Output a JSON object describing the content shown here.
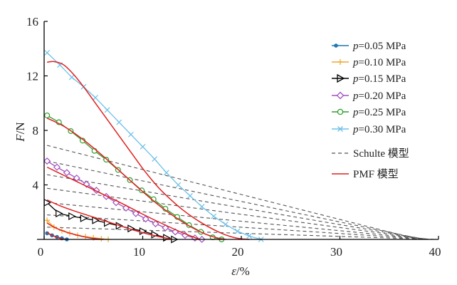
{
  "chart_data": {
    "type": "line",
    "title": "",
    "xlabel": {
      "symbol": "ε",
      "unit": "/%"
    },
    "ylabel": {
      "symbol": "F",
      "unit": "/N"
    },
    "xlim": [
      0,
      40
    ],
    "ylim": [
      0,
      16
    ],
    "xticks": [
      "0",
      "10",
      "20",
      "30",
      "40"
    ],
    "yticks": [
      "4",
      "8",
      "12",
      "16"
    ],
    "grid": false,
    "legend_position": "top-right",
    "series": [
      {
        "name": "p=0.05 MPa",
        "prefix": "p",
        "suffix": "=0.05 MPa",
        "color": "#1f77b4",
        "marker": "dot",
        "x": [
          0.3,
          0.8,
          1.3,
          1.8,
          2.3
        ],
        "y": [
          0.45,
          0.3,
          0.18,
          0.08,
          0.0
        ]
      },
      {
        "name": "p=0.10 MPa",
        "prefix": "p",
        "suffix": "=0.10 MPa",
        "color": "#f0a830",
        "marker": "plus",
        "x": [
          0.3,
          1.0,
          1.8,
          2.6,
          3.4,
          4.2,
          5.0,
          5.8,
          6.5
        ],
        "y": [
          1.4,
          0.9,
          0.65,
          0.45,
          0.3,
          0.2,
          0.12,
          0.05,
          0.0
        ]
      },
      {
        "name": "p=0.15 MPa",
        "prefix": "p",
        "suffix": "=0.15 MPa",
        "color": "#000000",
        "marker": "triangle-right",
        "x": [
          0.3,
          1.5,
          2.8,
          4.0,
          5.2,
          6.4,
          7.6,
          8.8,
          10.0,
          11.2,
          12.4,
          13.2
        ],
        "y": [
          2.7,
          1.9,
          1.7,
          1.55,
          1.4,
          1.2,
          1.0,
          0.8,
          0.6,
          0.35,
          0.12,
          0.0
        ]
      },
      {
        "name": "p=0.20 MPa",
        "prefix": "p",
        "suffix": "=0.20 MPa",
        "color": "#a050c0",
        "marker": "diamond",
        "x": [
          0.3,
          1.3,
          2.3,
          3.3,
          4.3,
          5.3,
          6.3,
          7.3,
          8.3,
          9.3,
          10.3,
          11.3,
          12.3,
          13.3,
          14.3,
          15.3,
          16.0
        ],
        "y": [
          5.75,
          5.3,
          4.9,
          4.5,
          4.05,
          3.6,
          3.15,
          2.7,
          2.3,
          1.9,
          1.5,
          1.15,
          0.85,
          0.55,
          0.3,
          0.1,
          0.0
        ]
      },
      {
        "name": "p=0.25 MPa",
        "prefix": "p",
        "suffix": "=0.25 MPa",
        "color": "#2ca02c",
        "marker": "circle",
        "x": [
          0.3,
          1.5,
          2.7,
          3.9,
          5.1,
          6.3,
          7.5,
          8.7,
          9.9,
          11.1,
          12.3,
          13.5,
          14.7,
          15.9,
          17.1,
          18.0
        ],
        "y": [
          9.1,
          8.6,
          7.95,
          7.25,
          6.5,
          5.85,
          5.1,
          4.35,
          3.6,
          2.95,
          2.25,
          1.65,
          1.05,
          0.55,
          0.15,
          0.0
        ]
      },
      {
        "name": "p=0.30 MPa",
        "prefix": "p",
        "suffix": "=0.30 MPa",
        "color": "#6ec0e8",
        "marker": "x",
        "x": [
          0.3,
          1.6,
          2.8,
          4.0,
          5.2,
          6.4,
          7.6,
          8.8,
          10.0,
          11.2,
          12.4,
          13.6,
          14.8,
          16.0,
          17.2,
          18.4,
          19.6,
          20.8,
          22.0
        ],
        "y": [
          13.7,
          12.8,
          11.9,
          11.2,
          10.4,
          9.5,
          8.6,
          7.7,
          6.8,
          5.9,
          4.9,
          4.0,
          3.2,
          2.4,
          1.7,
          1.1,
          0.6,
          0.25,
          0.0
        ]
      }
    ],
    "schulte_model": {
      "name": "Schulte 模型",
      "color": "#555555",
      "lines": [
        {
          "x": [
            0.3,
            38.0
          ],
          "y": [
            6.9,
            0.0
          ]
        },
        {
          "x": [
            0.3,
            38.5
          ],
          "y": [
            5.75,
            0.0
          ]
        },
        {
          "x": [
            0.3,
            38.8
          ],
          "y": [
            4.75,
            0.0
          ]
        },
        {
          "x": [
            0.3,
            39.0
          ],
          "y": [
            3.75,
            0.0
          ]
        },
        {
          "x": [
            0.3,
            39.2
          ],
          "y": [
            2.7,
            0.0
          ]
        },
        {
          "x": [
            0.3,
            39.4
          ],
          "y": [
            1.8,
            0.0
          ]
        },
        {
          "x": [
            0.3,
            39.6
          ],
          "y": [
            0.9,
            0.0
          ]
        }
      ]
    },
    "pmf_model": {
      "name": "PMF 模型",
      "color": "#e02020",
      "curves": [
        {
          "x": [
            0.3,
            0.8,
            1.3,
            1.8,
            2.2
          ],
          "y": [
            0.5,
            0.3,
            0.15,
            0.05,
            0.0
          ]
        },
        {
          "x": [
            0.3,
            1.0,
            2.0,
            3.0,
            4.0,
            5.0,
            6.0
          ],
          "y": [
            1.2,
            0.9,
            0.6,
            0.38,
            0.2,
            0.07,
            0.0
          ]
        },
        {
          "x": [
            0.3,
            1.5,
            3.0,
            4.5,
            6.0,
            7.5,
            9.0,
            10.5,
            12.0,
            13.0
          ],
          "y": [
            2.9,
            2.5,
            2.1,
            1.75,
            1.4,
            1.05,
            0.7,
            0.4,
            0.15,
            0.0
          ]
        },
        {
          "x": [
            0.3,
            2.0,
            4.0,
            6.0,
            8.0,
            10.0,
            12.0,
            14.0,
            15.8
          ],
          "y": [
            5.3,
            4.7,
            4.0,
            3.3,
            2.6,
            1.85,
            1.15,
            0.5,
            0.0
          ]
        },
        {
          "x": [
            0.3,
            2.0,
            4.0,
            6.0,
            8.0,
            10.0,
            12.0,
            14.0,
            16.0,
            17.5,
            18.5
          ],
          "y": [
            8.9,
            8.3,
            7.3,
            6.1,
            4.8,
            3.5,
            2.3,
            1.3,
            0.5,
            0.12,
            0.0
          ]
        },
        {
          "x": [
            0.3,
            1.0,
            2.0,
            3.0,
            4.0,
            5.0,
            6.0,
            7.0,
            8.0,
            9.0,
            10.0,
            11.0,
            12.0,
            14.0,
            16.0,
            18.0,
            19.5,
            20.8
          ],
          "y": [
            13.0,
            13.05,
            12.8,
            12.1,
            11.2,
            10.2,
            9.2,
            8.2,
            7.2,
            6.2,
            5.2,
            4.3,
            3.5,
            2.2,
            1.2,
            0.45,
            0.1,
            0.0
          ]
        }
      ]
    }
  }
}
